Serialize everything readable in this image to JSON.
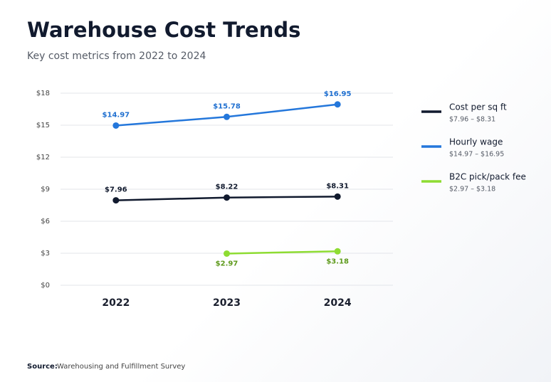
{
  "chart_data": {
    "type": "line",
    "title": "Warehouse Cost Trends",
    "subtitle": "Key cost metrics from 2022 to 2024",
    "categories": [
      "2022",
      "2023",
      "2024"
    ],
    "series": [
      {
        "name": "Cost per sq ft",
        "range": "$7.96 – $8.31",
        "color": "#111a2e",
        "label_color": "#111a2e",
        "label_side": "above",
        "values": [
          7.96,
          8.22,
          8.31
        ],
        "value_labels": [
          "$7.96",
          "$8.22",
          "$8.31"
        ]
      },
      {
        "name": "Hourly wage",
        "range": "$14.97 – $16.95",
        "color": "#2477db",
        "label_color": "#2070d0",
        "label_side": "above",
        "values": [
          14.97,
          15.78,
          16.95
        ],
        "value_labels": [
          "$14.97",
          "$15.78",
          "$16.95"
        ]
      },
      {
        "name": "B2C pick/pack fee",
        "range": "$2.97 – $3.18",
        "color": "#8edc32",
        "label_color": "#5e9a1c",
        "label_side": "below",
        "values": [
          null,
          2.97,
          3.18
        ],
        "value_labels": [
          null,
          "$2.97",
          "$3.18"
        ]
      }
    ],
    "ylim": [
      0,
      18
    ],
    "yticks": [
      {
        "value": 0,
        "label": "$0"
      },
      {
        "value": 3,
        "label": "$3"
      },
      {
        "value": 6,
        "label": "$6"
      },
      {
        "value": 9,
        "label": "$9"
      },
      {
        "value": 12,
        "label": "$12"
      },
      {
        "value": 15,
        "label": "$15"
      },
      {
        "value": 18,
        "label": "$18"
      }
    ],
    "grid": true,
    "legend": "right",
    "source_label": "Source:",
    "source": "Warehousing and Fulfillment Survey"
  }
}
